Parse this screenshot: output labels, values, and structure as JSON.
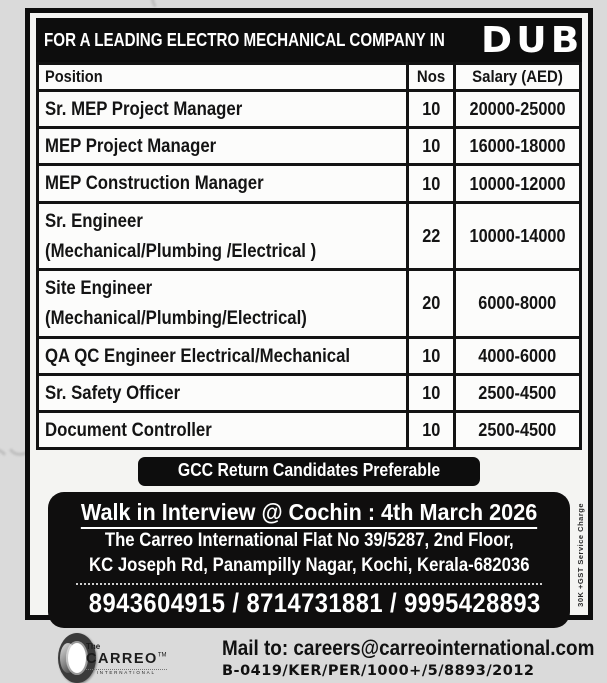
{
  "header": {
    "prefix": "FOR A LEADING ELECTRO MECHANICAL COMPANY IN",
    "city": "DUBAI"
  },
  "table": {
    "columns": [
      "Position",
      "Nos",
      "Salary (AED)"
    ],
    "rows": [
      {
        "position": "Sr. MEP Project Manager",
        "position_line2": "",
        "nos": "10",
        "salary": "20000-25000"
      },
      {
        "position": "MEP Project Manager",
        "position_line2": "",
        "nos": "10",
        "salary": "16000-18000"
      },
      {
        "position": "MEP Construction Manager",
        "position_line2": "",
        "nos": "10",
        "salary": "10000-12000"
      },
      {
        "position": "Sr. Engineer",
        "position_line2": "(Mechanical/Plumbing /Electrical )",
        "nos": "22",
        "salary": "10000-14000"
      },
      {
        "position": "Site Engineer",
        "position_line2": "(Mechanical/Plumbing/Electrical)",
        "nos": "20",
        "salary": "6000-8000"
      },
      {
        "position": "QA QC Engineer Electrical/Mechanical",
        "position_line2": "",
        "nos": "10",
        "salary": "4000-6000"
      },
      {
        "position": "Sr. Safety Officer",
        "position_line2": "",
        "nos": "10",
        "salary": "2500-4500"
      },
      {
        "position": "Document Controller",
        "position_line2": "",
        "nos": "10",
        "salary": "2500-4500"
      }
    ]
  },
  "banner": "GCC Return Candidates Preferable",
  "interview": {
    "title": "Walk in Interview @ Cochin :  4th March 2026",
    "address_line1": "The Carreo International Flat No 39/5287, 2nd Floor,",
    "address_line2": "KC Joseph Rd, Panampilly Nagar, Kochi, Kerala-682036",
    "phones": "8943604915 / 8714731881 / 9995428893"
  },
  "footer": {
    "logo_the": "The",
    "logo_name": "CARREO",
    "logo_tm": "TM",
    "logo_sub": "INTERNATIONAL",
    "mail": "Mail to: careers@carreointernational.com",
    "license": "B-0419/KER/PER/1000+/5/8893/2012"
  },
  "side_note": "30K +GST Service Charge",
  "colors": {
    "ink": "#0d0d0d",
    "paper": "#f4f4f2",
    "background": "#dadada",
    "text_on_ink": "#ffffff"
  }
}
